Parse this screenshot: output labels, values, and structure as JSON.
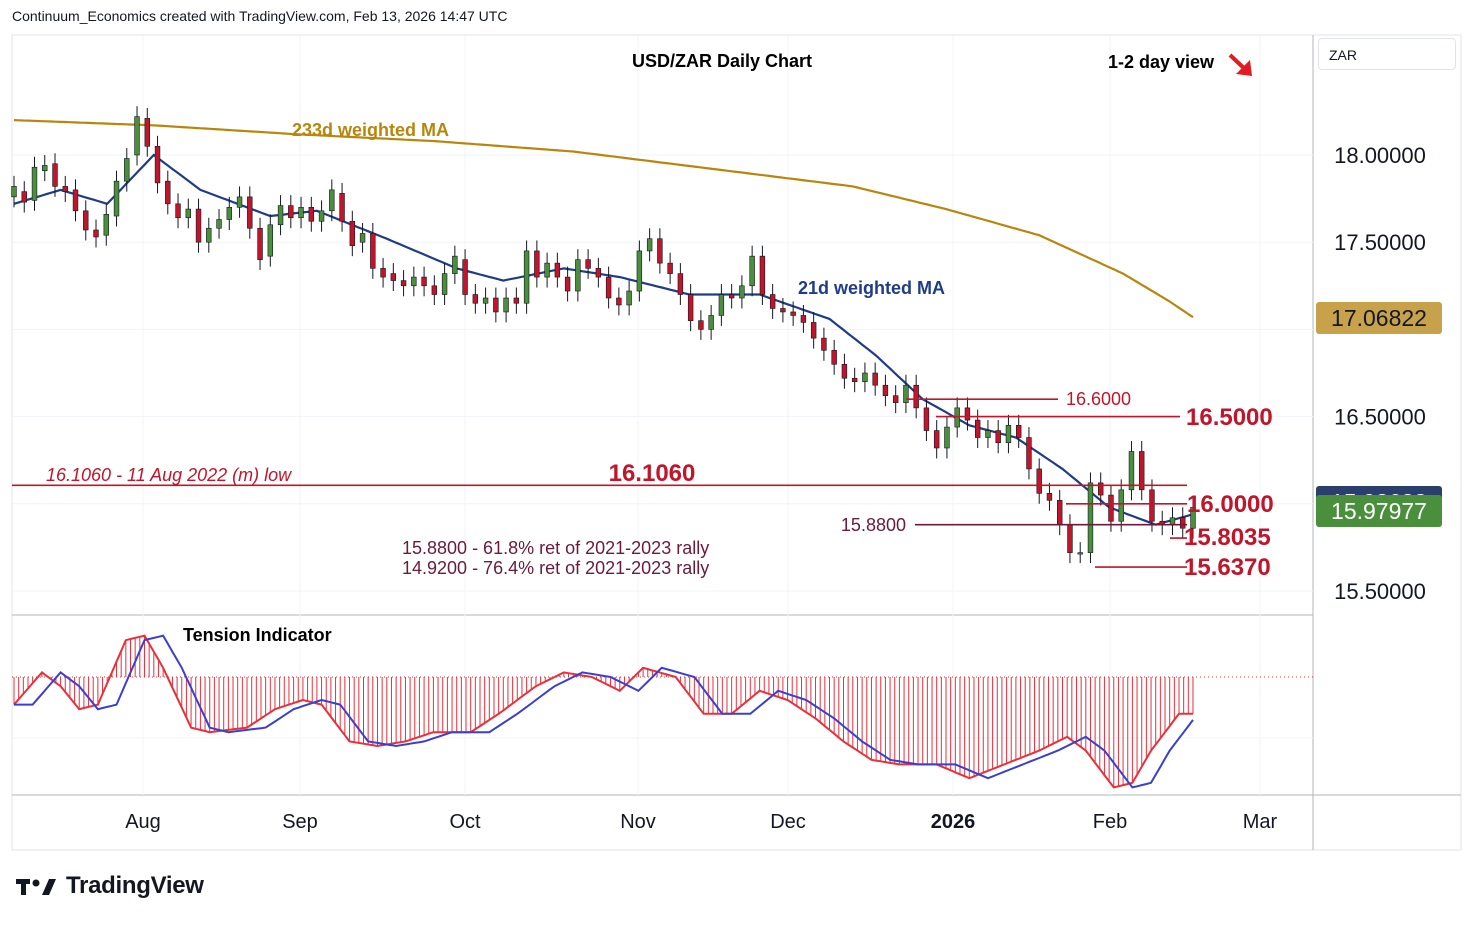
{
  "header": {
    "attribution": "Continuum_Economics created with TradingView.com, Feb 13, 2026 14:47 UTC"
  },
  "brand": {
    "name": "TradingView"
  },
  "currency_box": "ZAR",
  "chart_data": {
    "type": "candlestick",
    "title": "USD/ZAR Daily Chart",
    "view": "1-2 day view",
    "view_direction": "down",
    "x_ticks": [
      "Aug",
      "Sep",
      "Oct",
      "Nov",
      "Dec",
      "2026",
      "Feb",
      "Mar"
    ],
    "y_ticks": [
      "18.00000",
      "17.50000",
      "16.50000",
      "15.50000"
    ],
    "ylim": [
      15.42,
      18.7
    ],
    "price_badges": [
      {
        "value": "17.06822",
        "bg": "#c8a24a",
        "fg": "#131722"
      },
      {
        "value": "15.98683",
        "bg": "#2a3f6b",
        "fg": "#ffffff"
      },
      {
        "value": "15.97977",
        "bg": "#4a8f3c",
        "fg": "#ffffff"
      }
    ],
    "moving_averages": [
      {
        "name": "233d weighted MA",
        "color": "#b8860b",
        "values": [
          [
            0,
            18.2
          ],
          [
            30,
            18.17
          ],
          [
            60,
            18.12
          ],
          [
            90,
            18.08
          ],
          [
            120,
            18.02
          ],
          [
            150,
            17.92
          ],
          [
            180,
            17.82
          ],
          [
            200,
            17.69
          ],
          [
            220,
            17.54
          ],
          [
            238,
            17.32
          ],
          [
            248,
            17.16
          ],
          [
            253,
            17.07
          ]
        ]
      },
      {
        "name": "21d weighted MA",
        "color": "#1f3c88",
        "values": [
          [
            0,
            17.72
          ],
          [
            10,
            17.8
          ],
          [
            20,
            17.72
          ],
          [
            30,
            18.0
          ],
          [
            40,
            17.8
          ],
          [
            55,
            17.65
          ],
          [
            65,
            17.68
          ],
          [
            80,
            17.52
          ],
          [
            95,
            17.35
          ],
          [
            105,
            17.28
          ],
          [
            118,
            17.35
          ],
          [
            130,
            17.3
          ],
          [
            145,
            17.2
          ],
          [
            160,
            17.2
          ],
          [
            175,
            17.06
          ],
          [
            185,
            16.85
          ],
          [
            195,
            16.6
          ],
          [
            205,
            16.45
          ],
          [
            215,
            16.38
          ],
          [
            225,
            16.2
          ],
          [
            235,
            15.98
          ],
          [
            245,
            15.88
          ],
          [
            253,
            15.94
          ]
        ]
      }
    ],
    "candles": [
      [
        17.76,
        17.82
      ],
      [
        17.79,
        17.73
      ],
      [
        17.74,
        17.93
      ],
      [
        17.91,
        17.94
      ],
      [
        17.95,
        17.82
      ],
      [
        17.82,
        17.79
      ],
      [
        17.8,
        17.68
      ],
      [
        17.68,
        17.57
      ],
      [
        17.57,
        17.53
      ],
      [
        17.54,
        17.66
      ],
      [
        17.65,
        17.85
      ],
      [
        17.85,
        17.98
      ],
      [
        18.0,
        18.22
      ],
      [
        18.21,
        18.05
      ],
      [
        18.05,
        17.84
      ],
      [
        17.85,
        17.72
      ],
      [
        17.72,
        17.64
      ],
      [
        17.64,
        17.69
      ],
      [
        17.69,
        17.5
      ],
      [
        17.5,
        17.58
      ],
      [
        17.58,
        17.63
      ],
      [
        17.63,
        17.7
      ],
      [
        17.7,
        17.76
      ],
      [
        17.76,
        17.58
      ],
      [
        17.58,
        17.4
      ],
      [
        17.42,
        17.6
      ],
      [
        17.6,
        17.71
      ],
      [
        17.71,
        17.64
      ],
      [
        17.64,
        17.7
      ],
      [
        17.7,
        17.62
      ],
      [
        17.62,
        17.68
      ],
      [
        17.68,
        17.8
      ],
      [
        17.78,
        17.62
      ],
      [
        17.62,
        17.48
      ],
      [
        17.5,
        17.55
      ],
      [
        17.55,
        17.35
      ],
      [
        17.35,
        17.3
      ],
      [
        17.32,
        17.28
      ],
      [
        17.28,
        17.25
      ],
      [
        17.25,
        17.3
      ],
      [
        17.3,
        17.25
      ],
      [
        17.25,
        17.2
      ],
      [
        17.2,
        17.32
      ],
      [
        17.32,
        17.42
      ],
      [
        17.4,
        17.2
      ],
      [
        17.2,
        17.15
      ],
      [
        17.15,
        17.18
      ],
      [
        17.18,
        17.1
      ],
      [
        17.1,
        17.18
      ],
      [
        17.18,
        17.15
      ],
      [
        17.15,
        17.45
      ],
      [
        17.45,
        17.3
      ],
      [
        17.3,
        17.38
      ],
      [
        17.38,
        17.3
      ],
      [
        17.3,
        17.22
      ],
      [
        17.22,
        17.4
      ],
      [
        17.4,
        17.35
      ],
      [
        17.35,
        17.3
      ],
      [
        17.3,
        17.18
      ],
      [
        17.18,
        17.14
      ],
      [
        17.14,
        17.22
      ],
      [
        17.22,
        17.45
      ],
      [
        17.45,
        17.52
      ],
      [
        17.52,
        17.38
      ],
      [
        17.38,
        17.32
      ],
      [
        17.32,
        17.2
      ],
      [
        17.2,
        17.05
      ],
      [
        17.05,
        17.0
      ],
      [
        17.0,
        17.08
      ],
      [
        17.08,
        17.2
      ],
      [
        17.2,
        17.18
      ],
      [
        17.18,
        17.25
      ],
      [
        17.25,
        17.42
      ],
      [
        17.42,
        17.2
      ],
      [
        17.2,
        17.12
      ],
      [
        17.12,
        17.1
      ],
      [
        17.1,
        17.08
      ],
      [
        17.08,
        17.04
      ],
      [
        17.04,
        16.95
      ],
      [
        16.95,
        16.88
      ],
      [
        16.88,
        16.8
      ],
      [
        16.8,
        16.72
      ],
      [
        16.72,
        16.7
      ],
      [
        16.7,
        16.75
      ],
      [
        16.75,
        16.68
      ],
      [
        16.68,
        16.62
      ],
      [
        16.62,
        16.58
      ],
      [
        16.58,
        16.68
      ],
      [
        16.68,
        16.55
      ],
      [
        16.55,
        16.42
      ],
      [
        16.42,
        16.32
      ],
      [
        16.32,
        16.44
      ],
      [
        16.44,
        16.55
      ],
      [
        16.55,
        16.48
      ],
      [
        16.48,
        16.38
      ],
      [
        16.38,
        16.42
      ],
      [
        16.42,
        16.35
      ],
      [
        16.35,
        16.45
      ],
      [
        16.45,
        16.38
      ],
      [
        16.38,
        16.2
      ],
      [
        16.2,
        16.06
      ],
      [
        16.06,
        16.02
      ],
      [
        16.02,
        15.88
      ],
      [
        15.88,
        15.72
      ],
      [
        15.72,
        15.72
      ],
      [
        15.72,
        16.12
      ],
      [
        16.12,
        16.05
      ],
      [
        16.05,
        15.9
      ],
      [
        15.9,
        16.08
      ],
      [
        16.08,
        16.3
      ],
      [
        16.3,
        16.08
      ],
      [
        16.08,
        15.9
      ],
      [
        15.9,
        15.88
      ],
      [
        15.88,
        15.92
      ],
      [
        15.92,
        15.86
      ],
      [
        15.86,
        15.98
      ]
    ],
    "levels": [
      {
        "label": "16.6000",
        "value": 16.6,
        "color": "#c0152a"
      },
      {
        "label": "16.5000",
        "value": 16.5,
        "color": "#c0152a"
      },
      {
        "label": "16.1060",
        "value": 16.106,
        "color": "#c0152a"
      },
      {
        "label": "16.0000",
        "value": 16.0,
        "color": "#c0152a"
      },
      {
        "label": "15.8800",
        "value": 15.88,
        "color": "#6b1a3a"
      },
      {
        "label": "15.8035",
        "value": 15.8035,
        "color": "#c0152a"
      },
      {
        "label": "15.6370",
        "value": 15.637,
        "color": "#c0152a"
      }
    ],
    "annotations": {
      "low_2022": "16.1060 - 11 Aug 2022 (m) low",
      "ret_618": "15.8800 - 61.8% ret of 2021-2023 rally",
      "ret_764": "14.9200 - 76.4% ret of 2021-2023 rally"
    },
    "indicator": {
      "name": "Tension Indicator",
      "color_fast": "#e8303a",
      "color_slow": "#3a3fd0",
      "values": [
        [
          0,
          -0.6
        ],
        [
          6,
          0.1
        ],
        [
          10,
          -0.2
        ],
        [
          14,
          -0.7
        ],
        [
          18,
          -0.6
        ],
        [
          24,
          0.8
        ],
        [
          28,
          0.9
        ],
        [
          32,
          0.2
        ],
        [
          38,
          -1.1
        ],
        [
          42,
          -1.2
        ],
        [
          50,
          -1.1
        ],
        [
          56,
          -0.7
        ],
        [
          62,
          -0.5
        ],
        [
          66,
          -0.6
        ],
        [
          72,
          -1.4
        ],
        [
          78,
          -1.5
        ],
        [
          84,
          -1.4
        ],
        [
          90,
          -1.2
        ],
        [
          98,
          -1.2
        ],
        [
          104,
          -0.8
        ],
        [
          112,
          -0.2
        ],
        [
          118,
          0.1
        ],
        [
          124,
          0.0
        ],
        [
          130,
          -0.3
        ],
        [
          135,
          0.2
        ],
        [
          142,
          0.0
        ],
        [
          148,
          -0.8
        ],
        [
          154,
          -0.8
        ],
        [
          160,
          -0.3
        ],
        [
          166,
          -0.5
        ],
        [
          172,
          -0.9
        ],
        [
          178,
          -1.4
        ],
        [
          184,
          -1.8
        ],
        [
          190,
          -1.9
        ],
        [
          198,
          -1.9
        ],
        [
          205,
          -2.2
        ],
        [
          210,
          -2.0
        ],
        [
          220,
          -1.6
        ],
        [
          226,
          -1.3
        ],
        [
          230,
          -1.6
        ],
        [
          236,
          -2.4
        ],
        [
          240,
          -2.3
        ],
        [
          244,
          -1.6
        ],
        [
          250,
          -0.8
        ],
        [
          253,
          -0.8
        ]
      ]
    }
  }
}
